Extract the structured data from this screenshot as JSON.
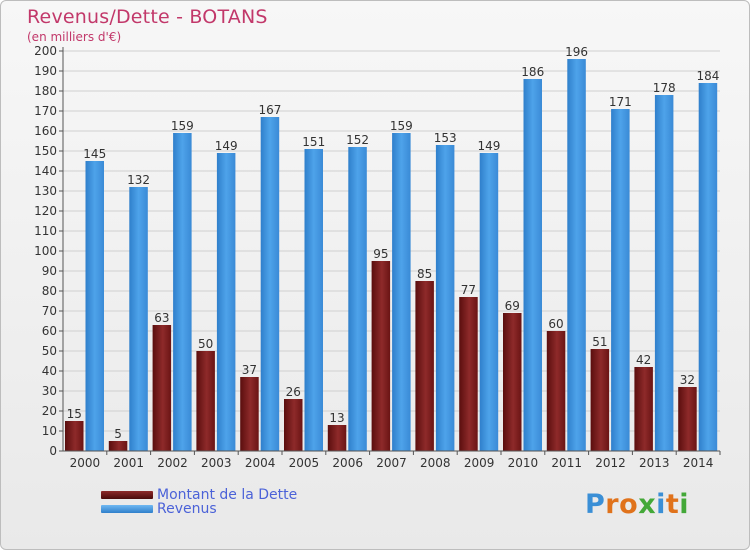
{
  "title": "Revenus/Dette - BOTANS",
  "subtitle": "(en milliers d'€)",
  "logo": {
    "letters": [
      "P",
      "r",
      "o",
      "x",
      "i",
      "t",
      "i"
    ],
    "colors": [
      "#3a8fd6",
      "#e0721b",
      "#e0721b",
      "#43a838",
      "#3a8fd6",
      "#e0721b",
      "#43a838"
    ]
  },
  "chart_data": {
    "type": "bar",
    "categories": [
      "2000",
      "2001",
      "2002",
      "2003",
      "2004",
      "2005",
      "2006",
      "2007",
      "2008",
      "2009",
      "2010",
      "2011",
      "2012",
      "2013",
      "2014"
    ],
    "series": [
      {
        "name": "Montant de la Dette",
        "color": "#7a1f1f",
        "values": [
          15,
          5,
          63,
          50,
          37,
          26,
          13,
          95,
          85,
          77,
          69,
          60,
          51,
          42,
          32
        ]
      },
      {
        "name": "Revenus",
        "color": "#3d8fdc",
        "values": [
          145,
          132,
          159,
          149,
          167,
          151,
          152,
          159,
          153,
          149,
          186,
          196,
          171,
          178,
          184
        ]
      }
    ],
    "ylim": [
      0,
      200
    ],
    "ytick_step": 10,
    "grid": true,
    "legend_position": "bottom-left"
  }
}
